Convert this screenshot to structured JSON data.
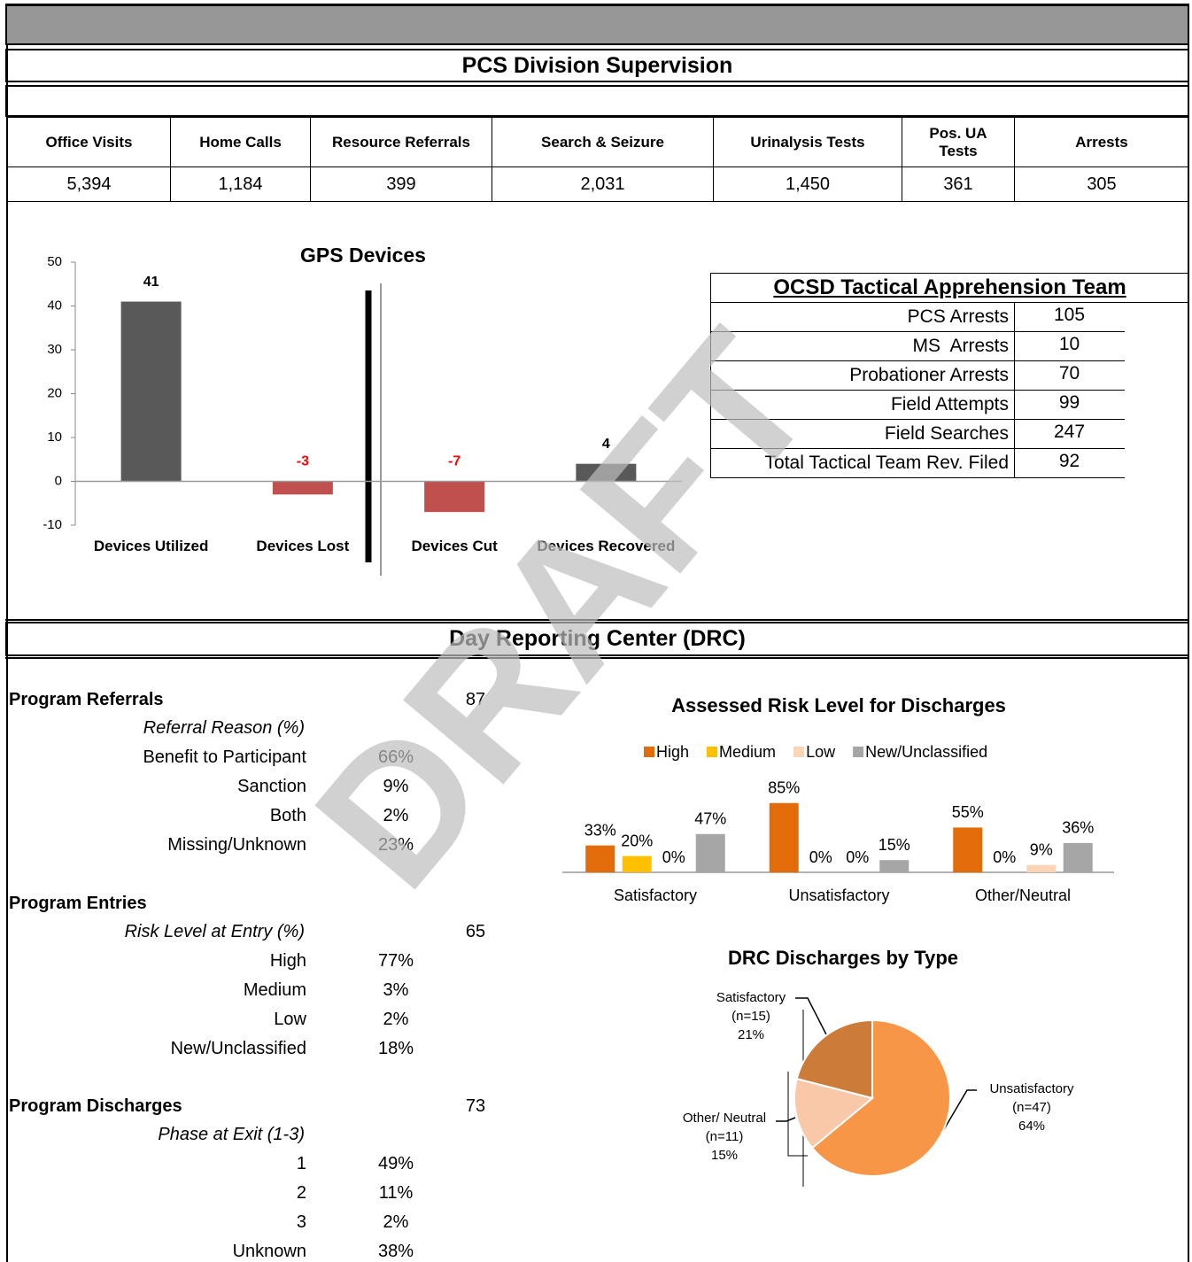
{
  "header": {
    "title": "PCS Division Supervision"
  },
  "stats_table": {
    "headers": [
      "Office Visits",
      "Home Calls",
      "Resource Referrals",
      "Search & Seizure",
      "Urinalysis Tests",
      "Pos. UA Tests",
      "Arrests"
    ],
    "values": [
      "5,394",
      "1,184",
      "399",
      "2,031",
      "1,450",
      "361",
      "305"
    ]
  },
  "gps_chart": {
    "type": "bar",
    "title": "GPS Devices",
    "categories": [
      "Devices Utilized",
      "Devices Lost",
      "Devices Cut",
      "Devices Recovered"
    ],
    "values": [
      41,
      -3,
      -7,
      4
    ],
    "ylim": [
      -10,
      50
    ],
    "yticks": [
      -10,
      0,
      10,
      20,
      30,
      40,
      50
    ],
    "positive_color": "#595959",
    "negative_color": "#c0504d",
    "negative_label_color": "#ff0000"
  },
  "tactical_team": {
    "title": "OCSD Tactical Apprehension Team",
    "rows": [
      {
        "label": "PCS Arrests",
        "value": 105
      },
      {
        "label": "MS  Arrests",
        "value": 10
      },
      {
        "label": "Probationer Arrests",
        "value": 70
      },
      {
        "label": "Field Attempts",
        "value": 99
      },
      {
        "label": "Field Searches",
        "value": 247
      },
      {
        "label": "Total Tactical Team Rev. Filed",
        "value": 92
      }
    ]
  },
  "drc": {
    "title": "Day Reporting Center (DRC)",
    "sections": [
      {
        "title": "Program Referrals",
        "total": 87,
        "subtitle": "Referral Reason (%)",
        "items": [
          {
            "label": "Benefit to Participant",
            "value": "66%"
          },
          {
            "label": "Sanction",
            "value": "9%"
          },
          {
            "label": "Both",
            "value": "2%"
          },
          {
            "label": "Missing/Unknown",
            "value": "23%"
          }
        ]
      },
      {
        "title": "Program Entries",
        "total": 65,
        "subtitle": "Risk Level at Entry (%)",
        "items": [
          {
            "label": "High",
            "value": "77%"
          },
          {
            "label": "Medium",
            "value": "3%"
          },
          {
            "label": "Low",
            "value": "2%"
          },
          {
            "label": "New/Unclassified",
            "value": "18%"
          }
        ]
      },
      {
        "title": "Program Discharges",
        "total": 73,
        "subtitle": "Phase at Exit (1-3)",
        "items": [
          {
            "label": "1",
            "value": "49%"
          },
          {
            "label": "2",
            "value": "11%"
          },
          {
            "label": "3",
            "value": "2%"
          },
          {
            "label": "Unknown",
            "value": "38%"
          }
        ]
      }
    ]
  },
  "risk_chart": {
    "type": "bar",
    "title": "Assessed Risk Level for Discharges",
    "categories": [
      "Satisfactory",
      "Unsatisfactory",
      "Other/Neutral"
    ],
    "series": [
      {
        "name": "High",
        "color": "#e36c0a",
        "values": [
          33,
          85,
          55
        ],
        "value_labels": [
          "33%",
          "85%",
          "55%"
        ]
      },
      {
        "name": "Medium",
        "color": "#ffc000",
        "values": [
          20,
          0,
          0
        ],
        "value_labels": [
          "20%",
          "0%",
          "0%"
        ]
      },
      {
        "name": "Low",
        "color": "#fbd5b5",
        "values": [
          0,
          0,
          9
        ],
        "value_labels": [
          "0%",
          "0%",
          "9%"
        ]
      },
      {
        "name": "New/Unclassified",
        "color": "#a6a6a6",
        "values": [
          47,
          15,
          36
        ],
        "value_labels": [
          "47%",
          "15%",
          "36%"
        ]
      }
    ]
  },
  "pie_chart": {
    "type": "pie",
    "title": "DRC Discharges by Type",
    "categories": [
      "Unsatisfactory",
      "Other/ Neutral",
      "Satisfactory"
    ],
    "count_labels": [
      "(n=47)",
      "(n=11)",
      "(n=15)"
    ],
    "values": [
      64,
      15,
      21
    ],
    "value_labels": [
      "64%",
      "15%",
      "21%"
    ],
    "colors": [
      "#f79646",
      "#f8c8a9",
      "#cd7b39"
    ]
  },
  "watermark": "DRAFT"
}
